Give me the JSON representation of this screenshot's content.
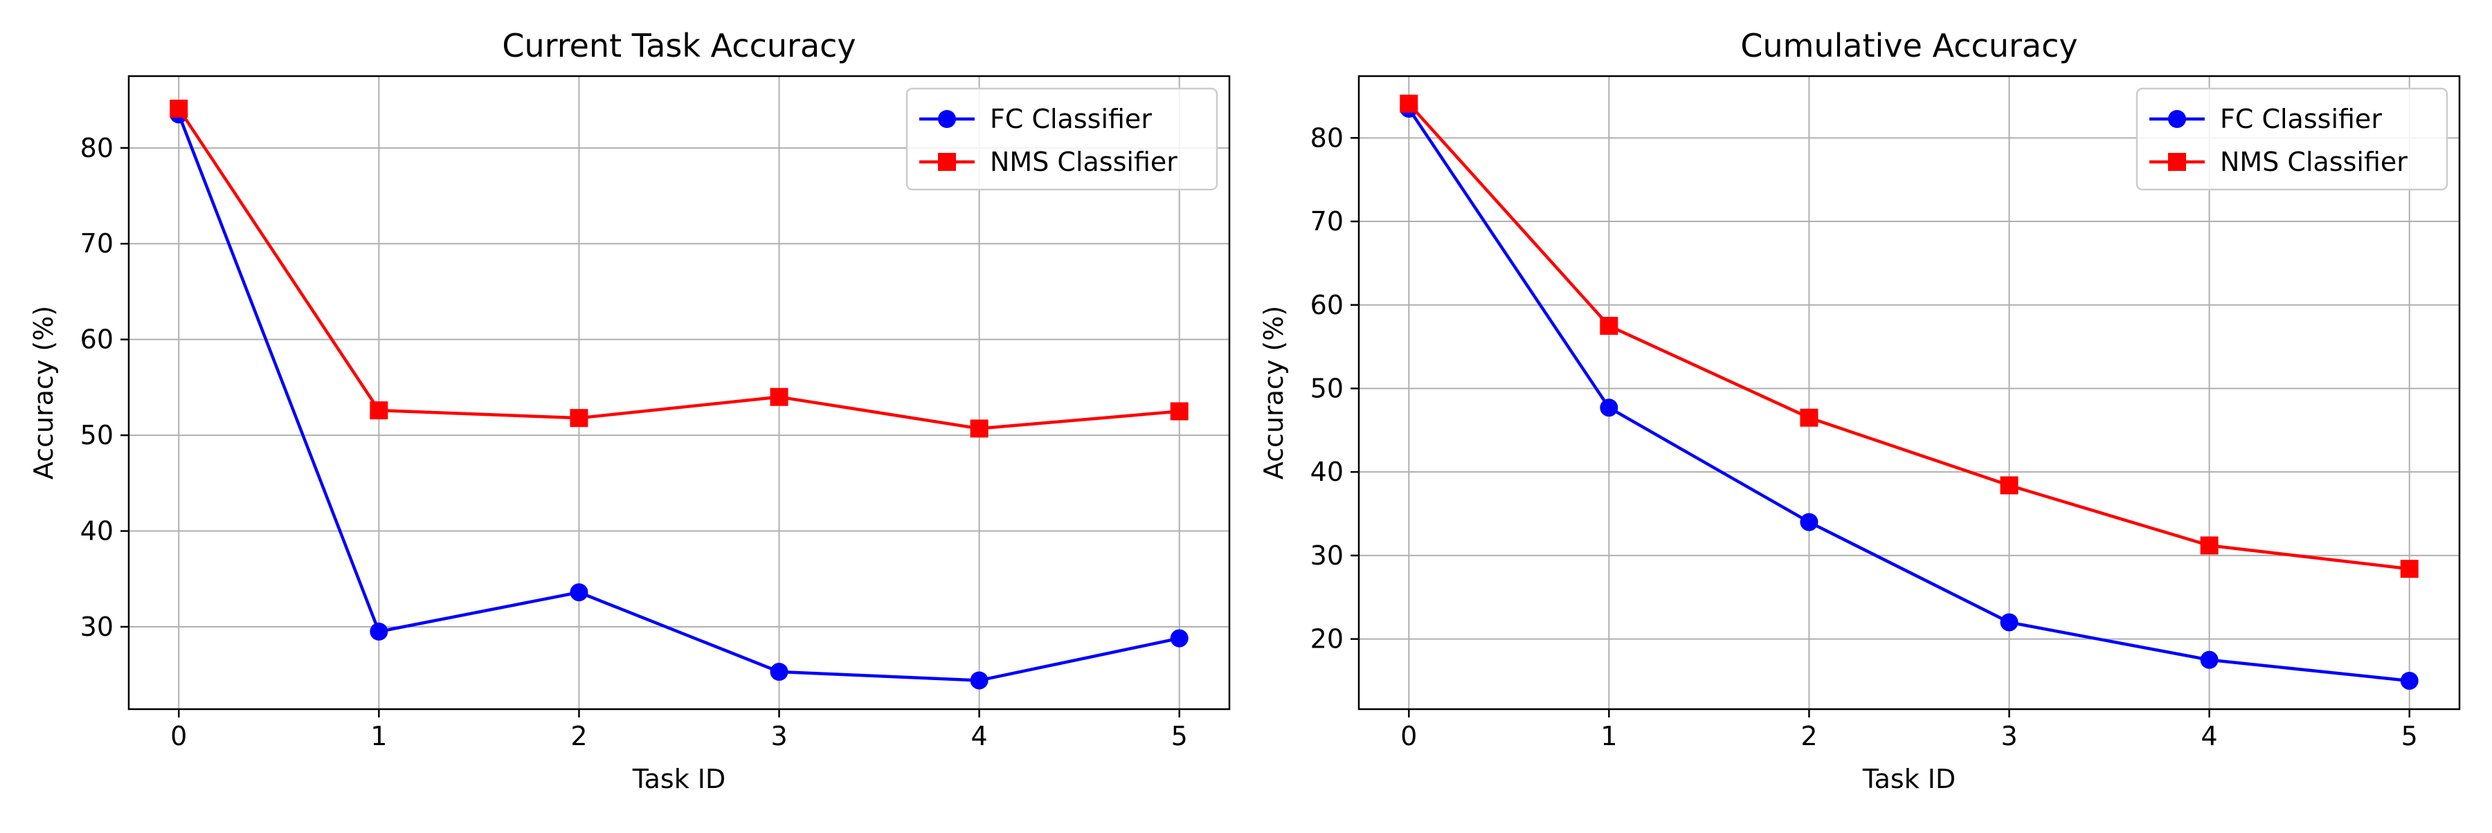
{
  "chart_data": [
    {
      "type": "line",
      "title": "Current Task Accuracy",
      "xlabel": "Task ID",
      "ylabel": "Accuracy (%)",
      "x": [
        0,
        1,
        2,
        3,
        4,
        5
      ],
      "xlim": [
        -0.25,
        5.25
      ],
      "ylim": [
        21.4,
        87.5
      ],
      "xticks": [
        0,
        1,
        2,
        3,
        4,
        5
      ],
      "yticks": [
        30,
        40,
        50,
        60,
        70,
        80
      ],
      "grid": true,
      "legend_position": "top-right",
      "series": [
        {
          "name": "FC Classifier",
          "color": "#0000ff",
          "marker": "circle",
          "values": [
            83.5,
            29.5,
            33.6,
            25.3,
            24.4,
            28.8
          ]
        },
        {
          "name": "NMS Classifier",
          "color": "#ff0000",
          "marker": "square",
          "values": [
            84.1,
            52.6,
            51.8,
            54.0,
            50.7,
            52.5
          ]
        }
      ]
    },
    {
      "type": "line",
      "title": "Cumulative Accuracy",
      "xlabel": "Task ID",
      "ylabel": "Accuracy (%)",
      "x": [
        0,
        1,
        2,
        3,
        4,
        5
      ],
      "xlim": [
        -0.25,
        5.25
      ],
      "ylim": [
        11.6,
        87.4
      ],
      "xticks": [
        0,
        1,
        2,
        3,
        4,
        5
      ],
      "yticks": [
        20,
        30,
        40,
        50,
        60,
        70,
        80
      ],
      "grid": true,
      "legend_position": "top-right",
      "series": [
        {
          "name": "FC Classifier",
          "color": "#0000ff",
          "marker": "circle",
          "values": [
            83.5,
            47.7,
            34.0,
            22.0,
            17.5,
            15.0
          ]
        },
        {
          "name": "NMS Classifier",
          "color": "#ff0000",
          "marker": "square",
          "values": [
            84.1,
            57.5,
            46.5,
            38.4,
            31.2,
            28.4
          ]
        }
      ]
    }
  ]
}
